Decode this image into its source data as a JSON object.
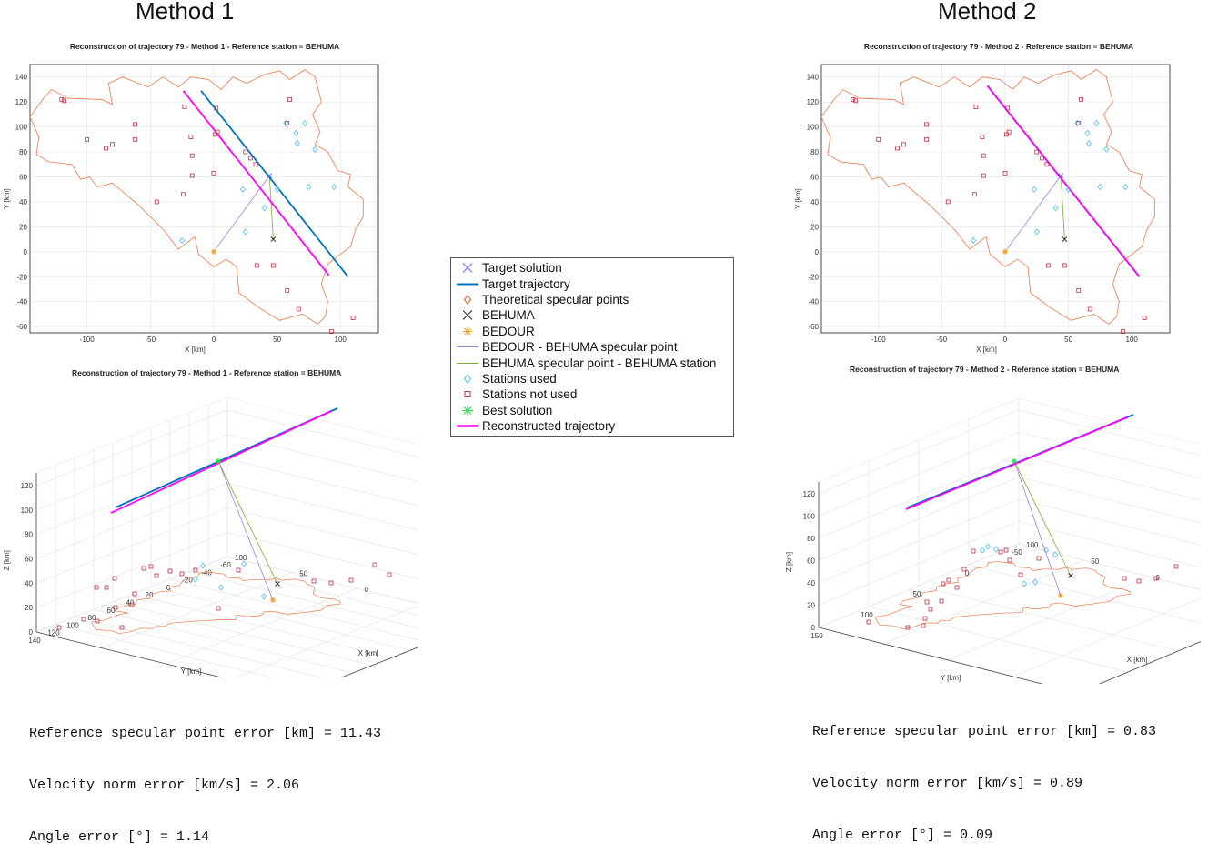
{
  "method1": {
    "title": "Method 1",
    "plot2d_title": "Reconstruction of trajectory 79 - Method 1 - Reference station = BEHUMA",
    "plot3d_title": "Reconstruction of trajectory 79 - Method 1 - Reference station = BEHUMA",
    "errors": [
      "Reference specular point error [km] = 11.43",
      "Velocity norm error [km/s] = 2.06",
      "Angle error [°] = 1.14"
    ]
  },
  "method2": {
    "title": "Method 2",
    "plot2d_title": "Reconstruction of trajectory 79 - Method 2 - Reference station = BEHUMA",
    "plot3d_title": "Reconstruction of trajectory 79 - Method 2 - Reference station = BEHUMA",
    "errors": [
      "Reference specular point error [km] = 0.83",
      "Velocity norm error [km/s] = 0.89",
      "Angle error [°] = 0.09"
    ]
  },
  "legend": [
    {
      "label": "Target solution",
      "symbol": "x-marker",
      "color": "#6b6bff"
    },
    {
      "label": "Target trajectory",
      "symbol": "line",
      "color": "#0072bd"
    },
    {
      "label": "Theoretical specular points",
      "symbol": "diamond-marker",
      "color": "#d95319"
    },
    {
      "label": "BEHUMA",
      "symbol": "x-marker",
      "color": "#333333"
    },
    {
      "label": "BEDOUR",
      "symbol": "star-marker",
      "color": "#f0a020"
    },
    {
      "label": "BEDOUR - BEHUMA specular point",
      "symbol": "line",
      "color": "#9d7fd8"
    },
    {
      "label": "BEHUMA specular point - BEHUMA station",
      "symbol": "line",
      "color": "#77ac30"
    },
    {
      "label": "Stations used",
      "symbol": "diamond-marker",
      "color": "#4dbeee"
    },
    {
      "label": "Stations not used",
      "symbol": "square-marker",
      "color": "#c0304a"
    },
    {
      "label": "Best solution",
      "symbol": "asterisk-marker",
      "color": "#22dd44"
    },
    {
      "label": "Reconstructed trajectory",
      "symbol": "thick-line",
      "color": "#ff00ff"
    }
  ],
  "colors": {
    "border": "#e8784a",
    "target": "#0072bd",
    "reconstructed": "#ff00ff",
    "stations_used": "#4dbeee",
    "stations_not_used": "#c0304a",
    "bedour_line": "#9d7fd8",
    "behuma_line": "#77ac30"
  },
  "chart_data": [
    {
      "type": "scatter",
      "title": "Reconstruction of trajectory 79 - Method 1 - Reference station = BEHUMA",
      "xlabel": "X [km]",
      "ylabel": "Y [km]",
      "xlim": [
        -145,
        130
      ],
      "ylim": [
        -65,
        150
      ],
      "xticks": [
        -100,
        -50,
        0,
        50,
        100
      ],
      "yticks": [
        -60,
        -40,
        -20,
        0,
        20,
        40,
        60,
        80,
        100,
        120,
        140
      ],
      "grid": true,
      "series": [
        {
          "name": "Target trajectory",
          "x": [
            -10,
            106
          ],
          "y": [
            129,
            -20
          ]
        },
        {
          "name": "Reconstructed trajectory",
          "x": [
            -24,
            91
          ],
          "y": [
            129,
            -19
          ]
        },
        {
          "name": "BEDOUR - BEHUMA specular point",
          "x": [
            0,
            44
          ],
          "y": [
            0,
            61
          ]
        },
        {
          "name": "BEHUMA specular point - BEHUMA station",
          "x": [
            44,
            47
          ],
          "y": [
            61,
            10
          ]
        },
        {
          "name": "BEHUMA",
          "x": [
            47
          ],
          "y": [
            10
          ]
        },
        {
          "name": "BEDOUR",
          "x": [
            0
          ],
          "y": [
            0
          ]
        },
        {
          "name": "Stations used",
          "x": [
            57,
            65,
            66,
            72,
            80,
            95,
            75,
            50,
            40,
            23,
            25,
            -25
          ],
          "y": [
            103,
            95,
            87,
            103,
            82,
            52,
            52,
            50,
            35,
            50,
            16,
            9
          ]
        },
        {
          "name": "Stations not used",
          "x": [
            -120,
            -118,
            -100,
            -85,
            -80,
            -62,
            -62,
            -23,
            -24,
            -45,
            -18,
            -17,
            -17,
            0,
            1,
            3,
            2,
            25,
            29,
            33,
            58,
            60,
            34,
            47,
            58,
            67,
            93,
            110
          ],
          "y": [
            122,
            121,
            90,
            83,
            86,
            90,
            102,
            116,
            46,
            40,
            92,
            77,
            61,
            63,
            94,
            96,
            115,
            80,
            75,
            70,
            103,
            122,
            -11,
            -11,
            -31,
            -46,
            -64,
            -53
          ]
        }
      ]
    },
    {
      "type": "scatter",
      "title": "Reconstruction of trajectory 79 - Method 2 - Reference station = BEHUMA",
      "xlabel": "X [km]",
      "ylabel": "Y [km]",
      "xlim": [
        -145,
        130
      ],
      "ylim": [
        -65,
        150
      ],
      "xticks": [
        -100,
        -50,
        0,
        50,
        100
      ],
      "yticks": [
        -60,
        -40,
        -20,
        0,
        20,
        40,
        60,
        80,
        100,
        120,
        140
      ],
      "grid": true,
      "series": [
        {
          "name": "Target trajectory",
          "x": [
            -14,
            106
          ],
          "y": [
            133,
            -20
          ]
        },
        {
          "name": "Reconstructed trajectory",
          "x": [
            -14,
            106
          ],
          "y": [
            133,
            -20
          ]
        },
        {
          "name": "BEDOUR - BEHUMA specular point",
          "x": [
            0,
            44
          ],
          "y": [
            0,
            61
          ]
        },
        {
          "name": "BEHUMA specular point - BEHUMA station",
          "x": [
            44,
            47
          ],
          "y": [
            61,
            10
          ]
        },
        {
          "name": "BEHUMA",
          "x": [
            47
          ],
          "y": [
            10
          ]
        },
        {
          "name": "BEDOUR",
          "x": [
            0
          ],
          "y": [
            0
          ]
        },
        {
          "name": "Stations used",
          "x": [
            57,
            65,
            66,
            72,
            80,
            95,
            75,
            50,
            40,
            23,
            25,
            -25
          ],
          "y": [
            103,
            95,
            87,
            103,
            82,
            52,
            52,
            50,
            35,
            50,
            16,
            9
          ]
        },
        {
          "name": "Stations not used",
          "x": [
            -120,
            -118,
            -100,
            -85,
            -80,
            -62,
            -62,
            -23,
            -24,
            -45,
            -18,
            -17,
            -17,
            0,
            1,
            3,
            2,
            25,
            29,
            33,
            58,
            60,
            34,
            47,
            58,
            67,
            93,
            110
          ],
          "y": [
            122,
            121,
            90,
            83,
            86,
            90,
            102,
            116,
            46,
            40,
            92,
            77,
            61,
            63,
            94,
            96,
            115,
            80,
            75,
            70,
            103,
            122,
            -11,
            -11,
            -31,
            -46,
            -64,
            -53
          ]
        }
      ]
    },
    {
      "type": "scatter",
      "title": "Reconstruction of trajectory 79 - Method 1 - Reference station = BEHUMA",
      "projection": "3d",
      "xlabel": "X [km]",
      "ylabel": "Y [km]",
      "zlabel": "Z [km]",
      "xticks": [
        -100,
        -50,
        0,
        50,
        100
      ],
      "yticks": [
        140,
        120,
        100,
        80,
        60,
        40,
        20,
        0,
        -20,
        -40,
        -60
      ],
      "zticks": [
        0,
        20,
        40,
        60,
        80,
        100,
        120
      ],
      "grid": true
    },
    {
      "type": "scatter",
      "title": "Reconstruction of trajectory 79 - Method 2 - Reference station = BEHUMA",
      "projection": "3d",
      "xlabel": "X [km]",
      "ylabel": "Y [km]",
      "zlabel": "Z [km]",
      "xticks": [
        -100,
        -50,
        0,
        50,
        100
      ],
      "yticks": [
        150,
        100,
        50,
        0,
        -50
      ],
      "zticks": [
        0,
        20,
        40,
        60,
        80,
        100,
        120
      ],
      "grid": true
    }
  ]
}
